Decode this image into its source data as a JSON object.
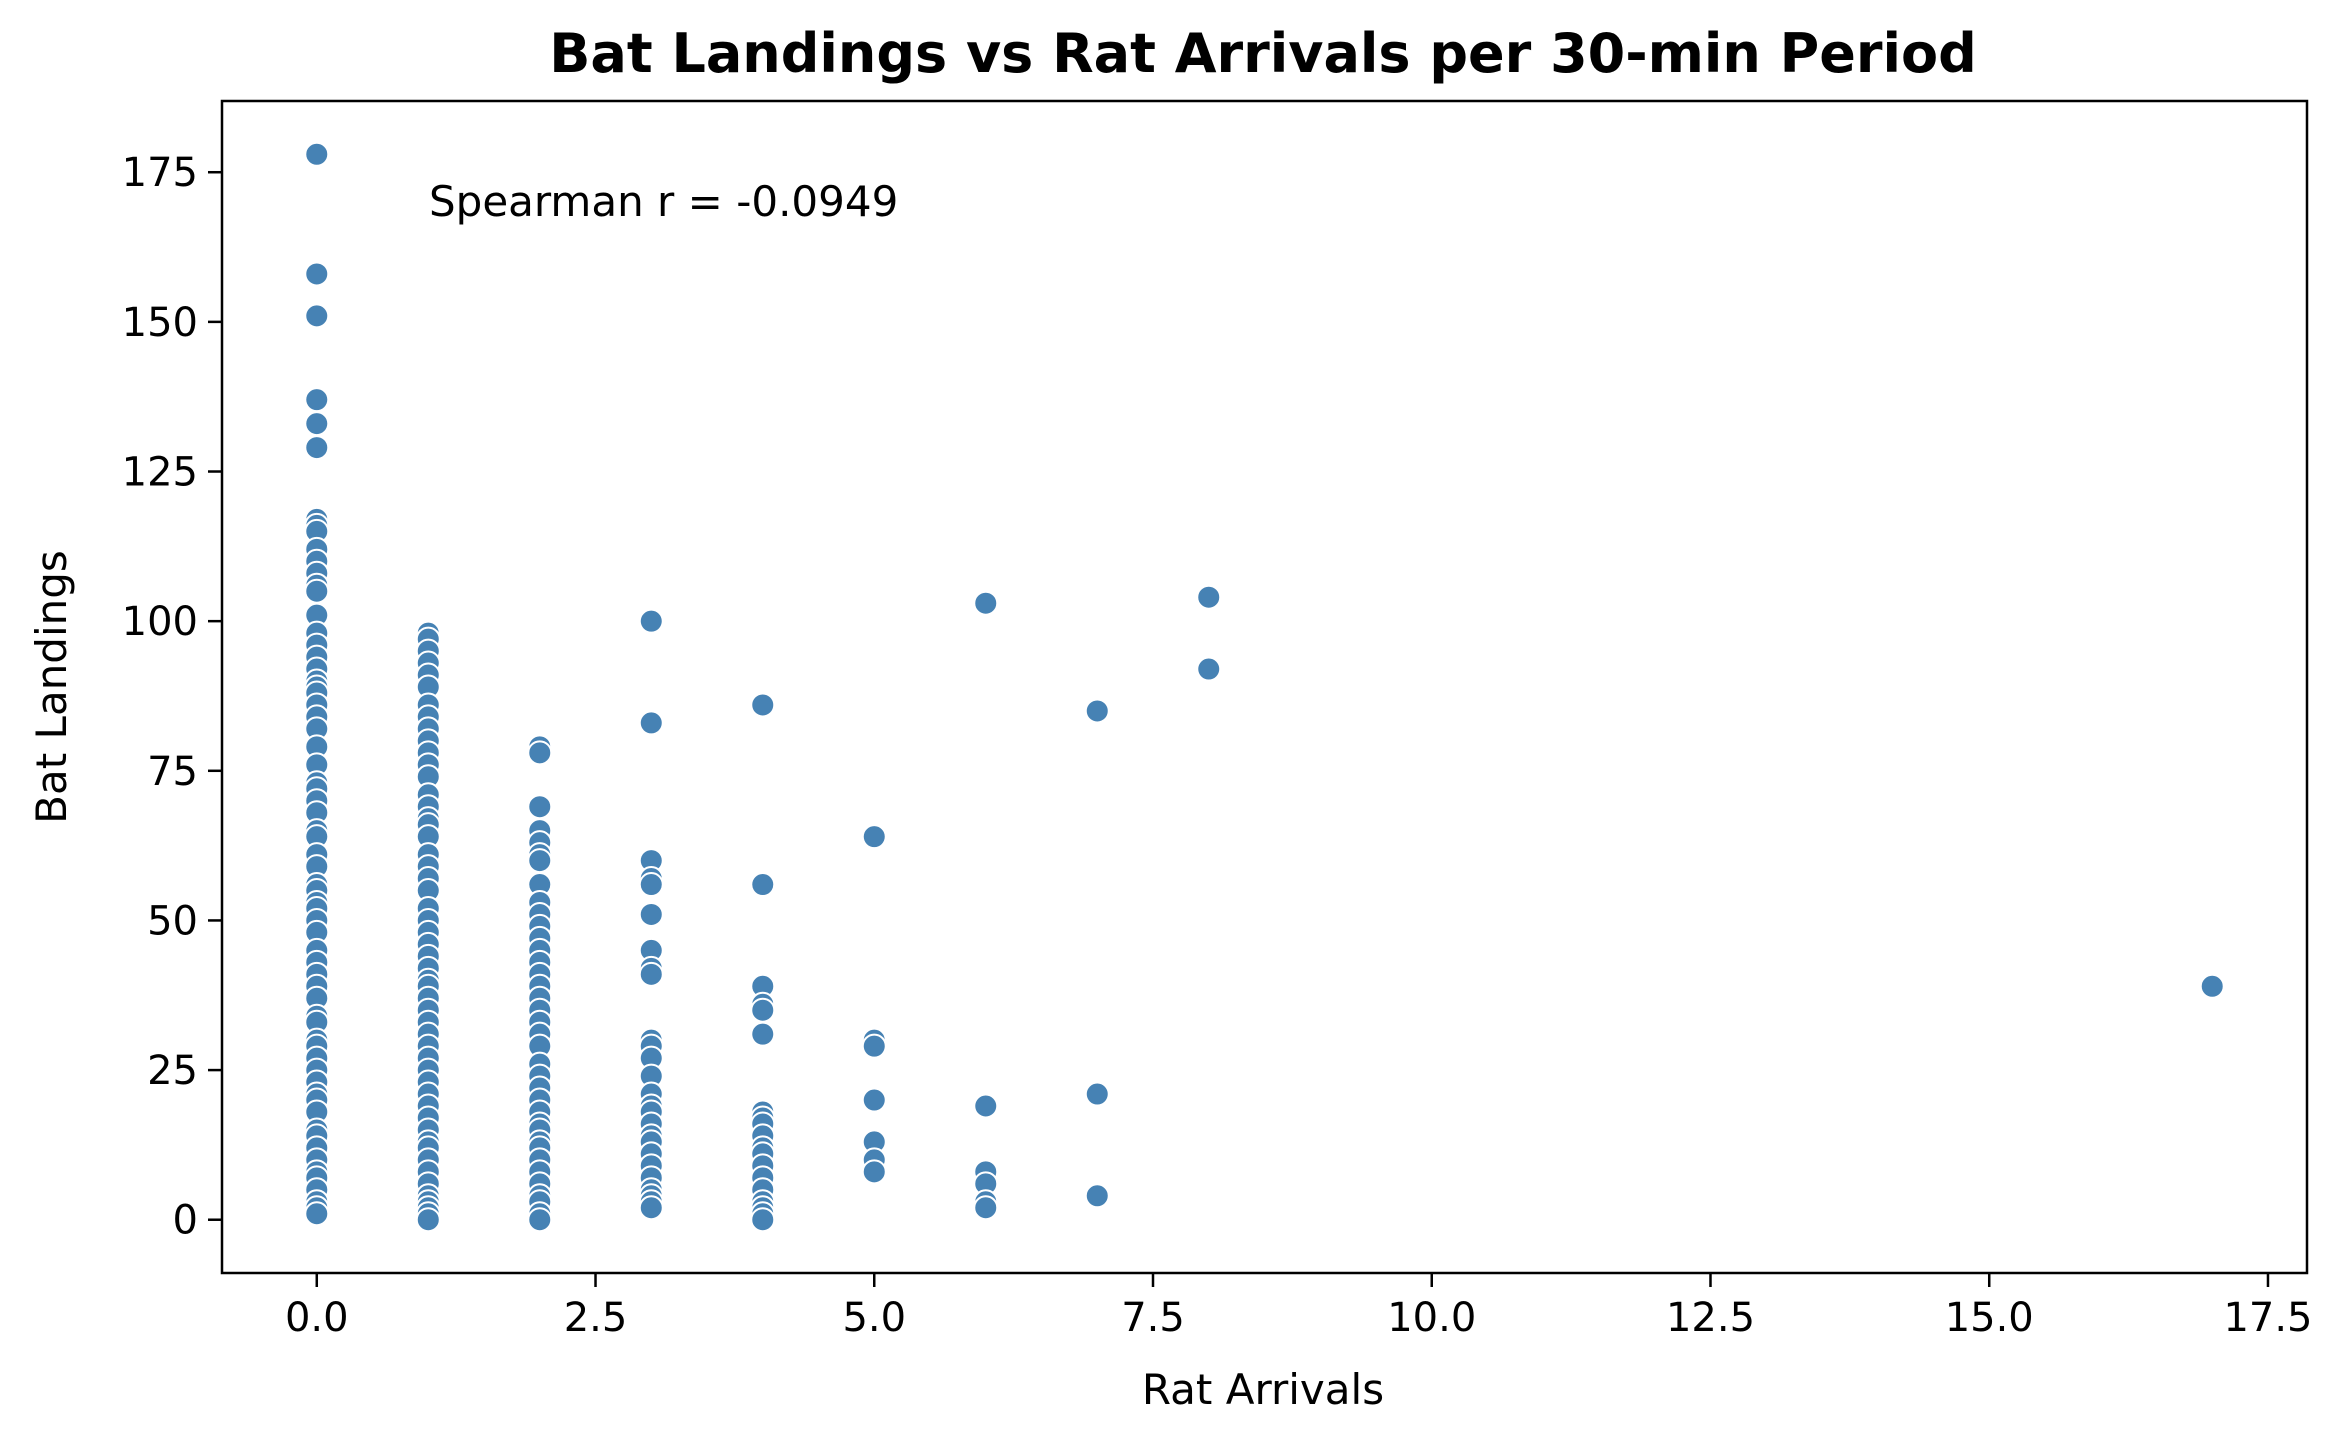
{
  "chart_data": {
    "type": "scatter",
    "title": "Bat Landings vs Rat Arrivals per 30-min Period",
    "xlabel": "Rat Arrivals",
    "ylabel": "Bat Landings",
    "xlim": [
      -0.85,
      17.85
    ],
    "ylim": [
      -8.9,
      186.9
    ],
    "xticks": [
      "0.0",
      "2.5",
      "5.0",
      "7.5",
      "10.0",
      "12.5",
      "15.0",
      "17.5"
    ],
    "xtick_values": [
      0,
      2.5,
      5,
      7.5,
      10,
      12.5,
      15,
      17.5
    ],
    "yticks": [
      "0",
      "25",
      "50",
      "75",
      "100",
      "125",
      "150",
      "175"
    ],
    "ytick_values": [
      0,
      25,
      50,
      75,
      100,
      125,
      150,
      175
    ],
    "grid": false,
    "marker_color": "#4682b4",
    "annotation": "Spearman r = -0.0949",
    "series": [
      {
        "points": [
          [
            0,
            178
          ],
          [
            0,
            158
          ],
          [
            0,
            151
          ],
          [
            0,
            137
          ],
          [
            0,
            133
          ],
          [
            0,
            129
          ],
          [
            0,
            117
          ],
          [
            0,
            116
          ],
          [
            0,
            115
          ],
          [
            0,
            112
          ],
          [
            0,
            110
          ],
          [
            0,
            108
          ],
          [
            0,
            106
          ],
          [
            0,
            105
          ],
          [
            0,
            101
          ],
          [
            0,
            98
          ],
          [
            0,
            96
          ],
          [
            0,
            94
          ],
          [
            0,
            92
          ],
          [
            0,
            90
          ],
          [
            0,
            89
          ],
          [
            0,
            88
          ],
          [
            0,
            86
          ],
          [
            0,
            84
          ],
          [
            0,
            82
          ],
          [
            0,
            79
          ],
          [
            0,
            76
          ],
          [
            0,
            73
          ],
          [
            0,
            72
          ],
          [
            0,
            70
          ],
          [
            0,
            68
          ],
          [
            0,
            65
          ],
          [
            0,
            64
          ],
          [
            0,
            61
          ],
          [
            0,
            59
          ],
          [
            0,
            56
          ],
          [
            0,
            55
          ],
          [
            0,
            53
          ],
          [
            0,
            52
          ],
          [
            0,
            50
          ],
          [
            0,
            48
          ],
          [
            0,
            45
          ],
          [
            0,
            43
          ],
          [
            0,
            41
          ],
          [
            0,
            39
          ],
          [
            0,
            37
          ],
          [
            0,
            34
          ],
          [
            0,
            33
          ],
          [
            0,
            30
          ],
          [
            0,
            29
          ],
          [
            0,
            27
          ],
          [
            0,
            25
          ],
          [
            0,
            23
          ],
          [
            0,
            21
          ],
          [
            0,
            20
          ],
          [
            0,
            18
          ],
          [
            0,
            15
          ],
          [
            0,
            14
          ],
          [
            0,
            12
          ],
          [
            0,
            10
          ],
          [
            0,
            8
          ],
          [
            0,
            7
          ],
          [
            0,
            5
          ],
          [
            0,
            3
          ],
          [
            0,
            2
          ],
          [
            0,
            1
          ],
          [
            1,
            98
          ],
          [
            1,
            97
          ],
          [
            1,
            95
          ],
          [
            1,
            93
          ],
          [
            1,
            91
          ],
          [
            1,
            89
          ],
          [
            1,
            86
          ],
          [
            1,
            84
          ],
          [
            1,
            82
          ],
          [
            1,
            80
          ],
          [
            1,
            78
          ],
          [
            1,
            76
          ],
          [
            1,
            74
          ],
          [
            1,
            71
          ],
          [
            1,
            69
          ],
          [
            1,
            67
          ],
          [
            1,
            66
          ],
          [
            1,
            64
          ],
          [
            1,
            61
          ],
          [
            1,
            59
          ],
          [
            1,
            57
          ],
          [
            1,
            55
          ],
          [
            1,
            52
          ],
          [
            1,
            50
          ],
          [
            1,
            48
          ],
          [
            1,
            46
          ],
          [
            1,
            44
          ],
          [
            1,
            42
          ],
          [
            1,
            40
          ],
          [
            1,
            39
          ],
          [
            1,
            37
          ],
          [
            1,
            35
          ],
          [
            1,
            33
          ],
          [
            1,
            31
          ],
          [
            1,
            29
          ],
          [
            1,
            27
          ],
          [
            1,
            25
          ],
          [
            1,
            23
          ],
          [
            1,
            21
          ],
          [
            1,
            19
          ],
          [
            1,
            17
          ],
          [
            1,
            15
          ],
          [
            1,
            13
          ],
          [
            1,
            12
          ],
          [
            1,
            10
          ],
          [
            1,
            8
          ],
          [
            1,
            6
          ],
          [
            1,
            4
          ],
          [
            1,
            3
          ],
          [
            1,
            2
          ],
          [
            1,
            1
          ],
          [
            1,
            0
          ],
          [
            2,
            79
          ],
          [
            2,
            78
          ],
          [
            2,
            69
          ],
          [
            2,
            65
          ],
          [
            2,
            63
          ],
          [
            2,
            61
          ],
          [
            2,
            60
          ],
          [
            2,
            56
          ],
          [
            2,
            53
          ],
          [
            2,
            51
          ],
          [
            2,
            49
          ],
          [
            2,
            47
          ],
          [
            2,
            45
          ],
          [
            2,
            43
          ],
          [
            2,
            41
          ],
          [
            2,
            39
          ],
          [
            2,
            37
          ],
          [
            2,
            35
          ],
          [
            2,
            33
          ],
          [
            2,
            31
          ],
          [
            2,
            29
          ],
          [
            2,
            26
          ],
          [
            2,
            24
          ],
          [
            2,
            22
          ],
          [
            2,
            20
          ],
          [
            2,
            18
          ],
          [
            2,
            16
          ],
          [
            2,
            15
          ],
          [
            2,
            13
          ],
          [
            2,
            12
          ],
          [
            2,
            10
          ],
          [
            2,
            8
          ],
          [
            2,
            6
          ],
          [
            2,
            4
          ],
          [
            2,
            3
          ],
          [
            2,
            1
          ],
          [
            2,
            0
          ],
          [
            3,
            100
          ],
          [
            3,
            83
          ],
          [
            3,
            60
          ],
          [
            3,
            57
          ],
          [
            3,
            56
          ],
          [
            3,
            51
          ],
          [
            3,
            45
          ],
          [
            3,
            42
          ],
          [
            3,
            41
          ],
          [
            3,
            30
          ],
          [
            3,
            29
          ],
          [
            3,
            27
          ],
          [
            3,
            24
          ],
          [
            3,
            21
          ],
          [
            3,
            19
          ],
          [
            3,
            18
          ],
          [
            3,
            16
          ],
          [
            3,
            14
          ],
          [
            3,
            13
          ],
          [
            3,
            11
          ],
          [
            3,
            9
          ],
          [
            3,
            7
          ],
          [
            3,
            5
          ],
          [
            3,
            4
          ],
          [
            3,
            3
          ],
          [
            3,
            2
          ],
          [
            4,
            86
          ],
          [
            4,
            56
          ],
          [
            4,
            39
          ],
          [
            4,
            36
          ],
          [
            4,
            35
          ],
          [
            4,
            31
          ],
          [
            4,
            18
          ],
          [
            4,
            17
          ],
          [
            4,
            16
          ],
          [
            4,
            14
          ],
          [
            4,
            12
          ],
          [
            4,
            11
          ],
          [
            4,
            9
          ],
          [
            4,
            7
          ],
          [
            4,
            5
          ],
          [
            4,
            3
          ],
          [
            4,
            2
          ],
          [
            4,
            1
          ],
          [
            4,
            0
          ],
          [
            5,
            64
          ],
          [
            5,
            30
          ],
          [
            5,
            29
          ],
          [
            5,
            20
          ],
          [
            5,
            13
          ],
          [
            5,
            10
          ],
          [
            5,
            8
          ],
          [
            6,
            103
          ],
          [
            6,
            19
          ],
          [
            6,
            8
          ],
          [
            6,
            6
          ],
          [
            6,
            3
          ],
          [
            6,
            2
          ],
          [
            7,
            85
          ],
          [
            7,
            21
          ],
          [
            7,
            4
          ],
          [
            8,
            104
          ],
          [
            8,
            92
          ],
          [
            17,
            39
          ]
        ]
      }
    ]
  }
}
